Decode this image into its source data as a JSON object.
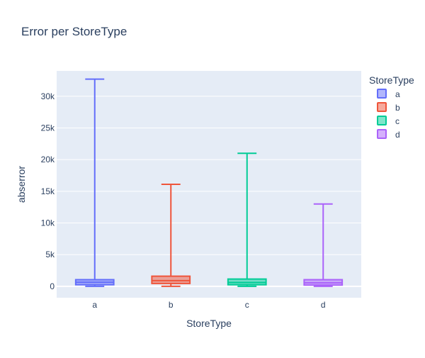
{
  "chart_data": {
    "type": "box",
    "title": "Error per StoreType",
    "xlabel": "StoreType",
    "ylabel": "abserror",
    "categories": [
      "a",
      "b",
      "c",
      "d"
    ],
    "ylim": [
      -1800,
      34000
    ],
    "yticks": [
      0,
      5000,
      10000,
      15000,
      20000,
      25000,
      30000
    ],
    "ytick_labels": [
      "0",
      "5k",
      "10k",
      "15k",
      "20k",
      "25k",
      "30k"
    ],
    "grid": true,
    "legend": {
      "title": "StoreType",
      "placement": "right"
    },
    "series": [
      {
        "name": "a",
        "color": "#636efa",
        "min": 0,
        "q1": 250,
        "median": 650,
        "q3": 1050,
        "max": 32700
      },
      {
        "name": "b",
        "color": "#ef553b",
        "min": 0,
        "q1": 450,
        "median": 900,
        "q3": 1600,
        "max": 16100
      },
      {
        "name": "c",
        "color": "#00cc96",
        "min": 0,
        "q1": 250,
        "median": 600,
        "q3": 1150,
        "max": 21000
      },
      {
        "name": "d",
        "color": "#ab63fa",
        "min": 0,
        "q1": 200,
        "median": 550,
        "q3": 1050,
        "max": 13000
      }
    ]
  }
}
